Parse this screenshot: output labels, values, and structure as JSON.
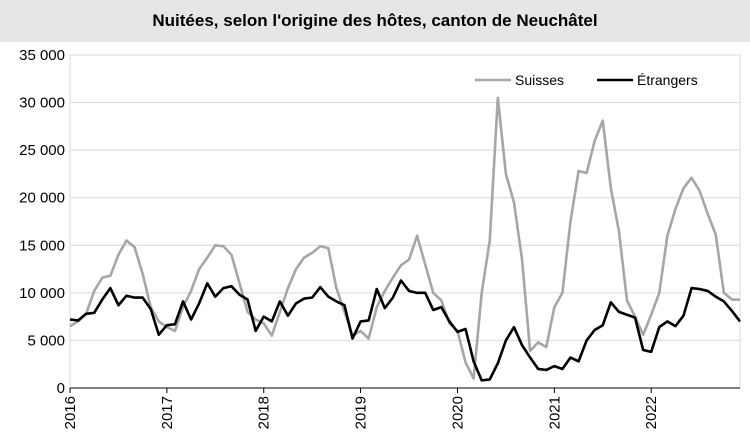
{
  "chart_data": {
    "type": "line",
    "title": "Nuitées, selon l'origine des hôtes, canton de Neuchâtel",
    "xlabel": "",
    "ylabel": "",
    "ylim": [
      0,
      35000
    ],
    "yticks": [
      0,
      5000,
      10000,
      15000,
      20000,
      25000,
      30000,
      35000
    ],
    "ytick_labels": [
      "0",
      "5 000",
      "10 000",
      "15 000",
      "20 000",
      "25 000",
      "30 000",
      "35 000"
    ],
    "xticks": [
      "2016",
      "2017",
      "2018",
      "2019",
      "2020",
      "2021",
      "2022"
    ],
    "grid": "horizontal",
    "legend_position": "top-right",
    "x": [
      "2016-01",
      "2016-02",
      "2016-03",
      "2016-04",
      "2016-05",
      "2016-06",
      "2016-07",
      "2016-08",
      "2016-09",
      "2016-10",
      "2016-11",
      "2016-12",
      "2017-01",
      "2017-02",
      "2017-03",
      "2017-04",
      "2017-05",
      "2017-06",
      "2017-07",
      "2017-08",
      "2017-09",
      "2017-10",
      "2017-11",
      "2017-12",
      "2018-01",
      "2018-02",
      "2018-03",
      "2018-04",
      "2018-05",
      "2018-06",
      "2018-07",
      "2018-08",
      "2018-09",
      "2018-10",
      "2018-11",
      "2018-12",
      "2019-01",
      "2019-02",
      "2019-03",
      "2019-04",
      "2019-05",
      "2019-06",
      "2019-07",
      "2019-08",
      "2019-09",
      "2019-10",
      "2019-11",
      "2019-12",
      "2020-01",
      "2020-02",
      "2020-03",
      "2020-04",
      "2020-05",
      "2020-06",
      "2020-07",
      "2020-08",
      "2020-09",
      "2020-10",
      "2020-11",
      "2020-12",
      "2021-01",
      "2021-02",
      "2021-03",
      "2021-04",
      "2021-05",
      "2021-06",
      "2021-07",
      "2021-08",
      "2021-09",
      "2021-10",
      "2021-11",
      "2021-12",
      "2022-01",
      "2022-02",
      "2022-03",
      "2022-04",
      "2022-05",
      "2022-06",
      "2022-07",
      "2022-08",
      "2022-09",
      "2022-10",
      "2022-11",
      "2022-12"
    ],
    "series": [
      {
        "name": "Suisses",
        "color": "#a6a6a6",
        "values": [
          6500,
          7000,
          7800,
          10200,
          11600,
          11800,
          14000,
          15500,
          14800,
          12000,
          8500,
          7000,
          6400,
          6000,
          8500,
          10200,
          12500,
          13700,
          15000,
          14900,
          14000,
          11000,
          8000,
          7200,
          6800,
          5500,
          8000,
          10500,
          12500,
          13700,
          14200,
          14900,
          14700,
          10500,
          8000,
          5500,
          6000,
          5200,
          8500,
          10200,
          11600,
          12900,
          13500,
          16000,
          13000,
          10000,
          9200,
          6800,
          6000,
          2700,
          1000,
          10000,
          15500,
          30500,
          22500,
          19500,
          13500,
          3900,
          4800,
          4300,
          8500,
          10000,
          17500,
          22800,
          22600,
          26000,
          28100,
          21000,
          16500,
          9200,
          7500,
          5600,
          7700,
          10000,
          16000,
          18800,
          21000,
          22100,
          20700,
          18300,
          16100,
          10000,
          9300,
          9300
        ]
      },
      {
        "name": "Étrangers",
        "color": "#000000",
        "values": [
          7200,
          7100,
          7800,
          7900,
          9300,
          10500,
          8700,
          9700,
          9500,
          9500,
          8300,
          5600,
          6600,
          6700,
          9100,
          7200,
          8900,
          11000,
          9600,
          10500,
          10700,
          9800,
          9300,
          6000,
          7500,
          7000,
          9100,
          7600,
          8900,
          9400,
          9500,
          10600,
          9600,
          9100,
          8700,
          5200,
          7000,
          7100,
          10400,
          8400,
          9500,
          11300,
          10200,
          10000,
          10000,
          8200,
          8500,
          7000,
          5900,
          6200,
          2800,
          800,
          900,
          2600,
          5000,
          6400,
          4500,
          3200,
          2000,
          1900,
          2300,
          2000,
          3200,
          2800,
          5000,
          6100,
          6600,
          9000,
          8000,
          7700,
          7400,
          4000,
          3800,
          6400,
          7000,
          6500,
          7600,
          10500,
          10400,
          10200,
          9600,
          9100,
          8100,
          7000
        ]
      }
    ]
  }
}
